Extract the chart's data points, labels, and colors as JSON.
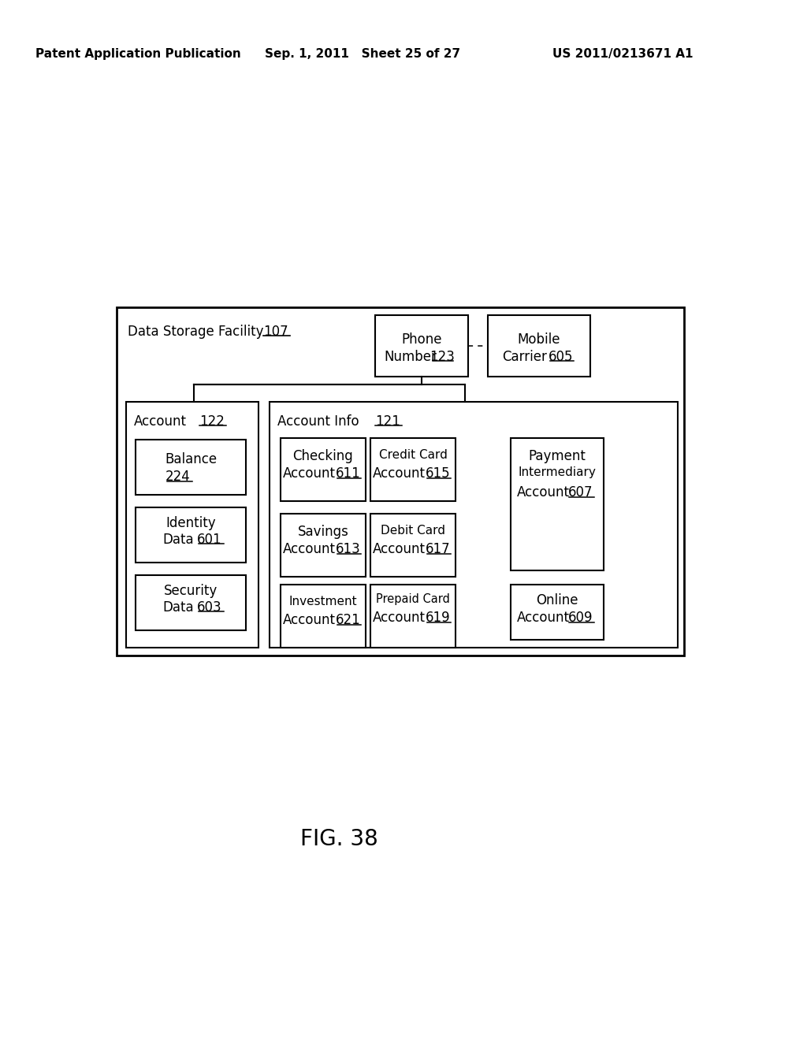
{
  "bg_color": "#ffffff",
  "header_left": "Patent Application Publication",
  "header_mid": "Sep. 1, 2011   Sheet 25 of 27",
  "header_right": "US 2011/0213671 A1",
  "fig_label": "FIG. 38"
}
